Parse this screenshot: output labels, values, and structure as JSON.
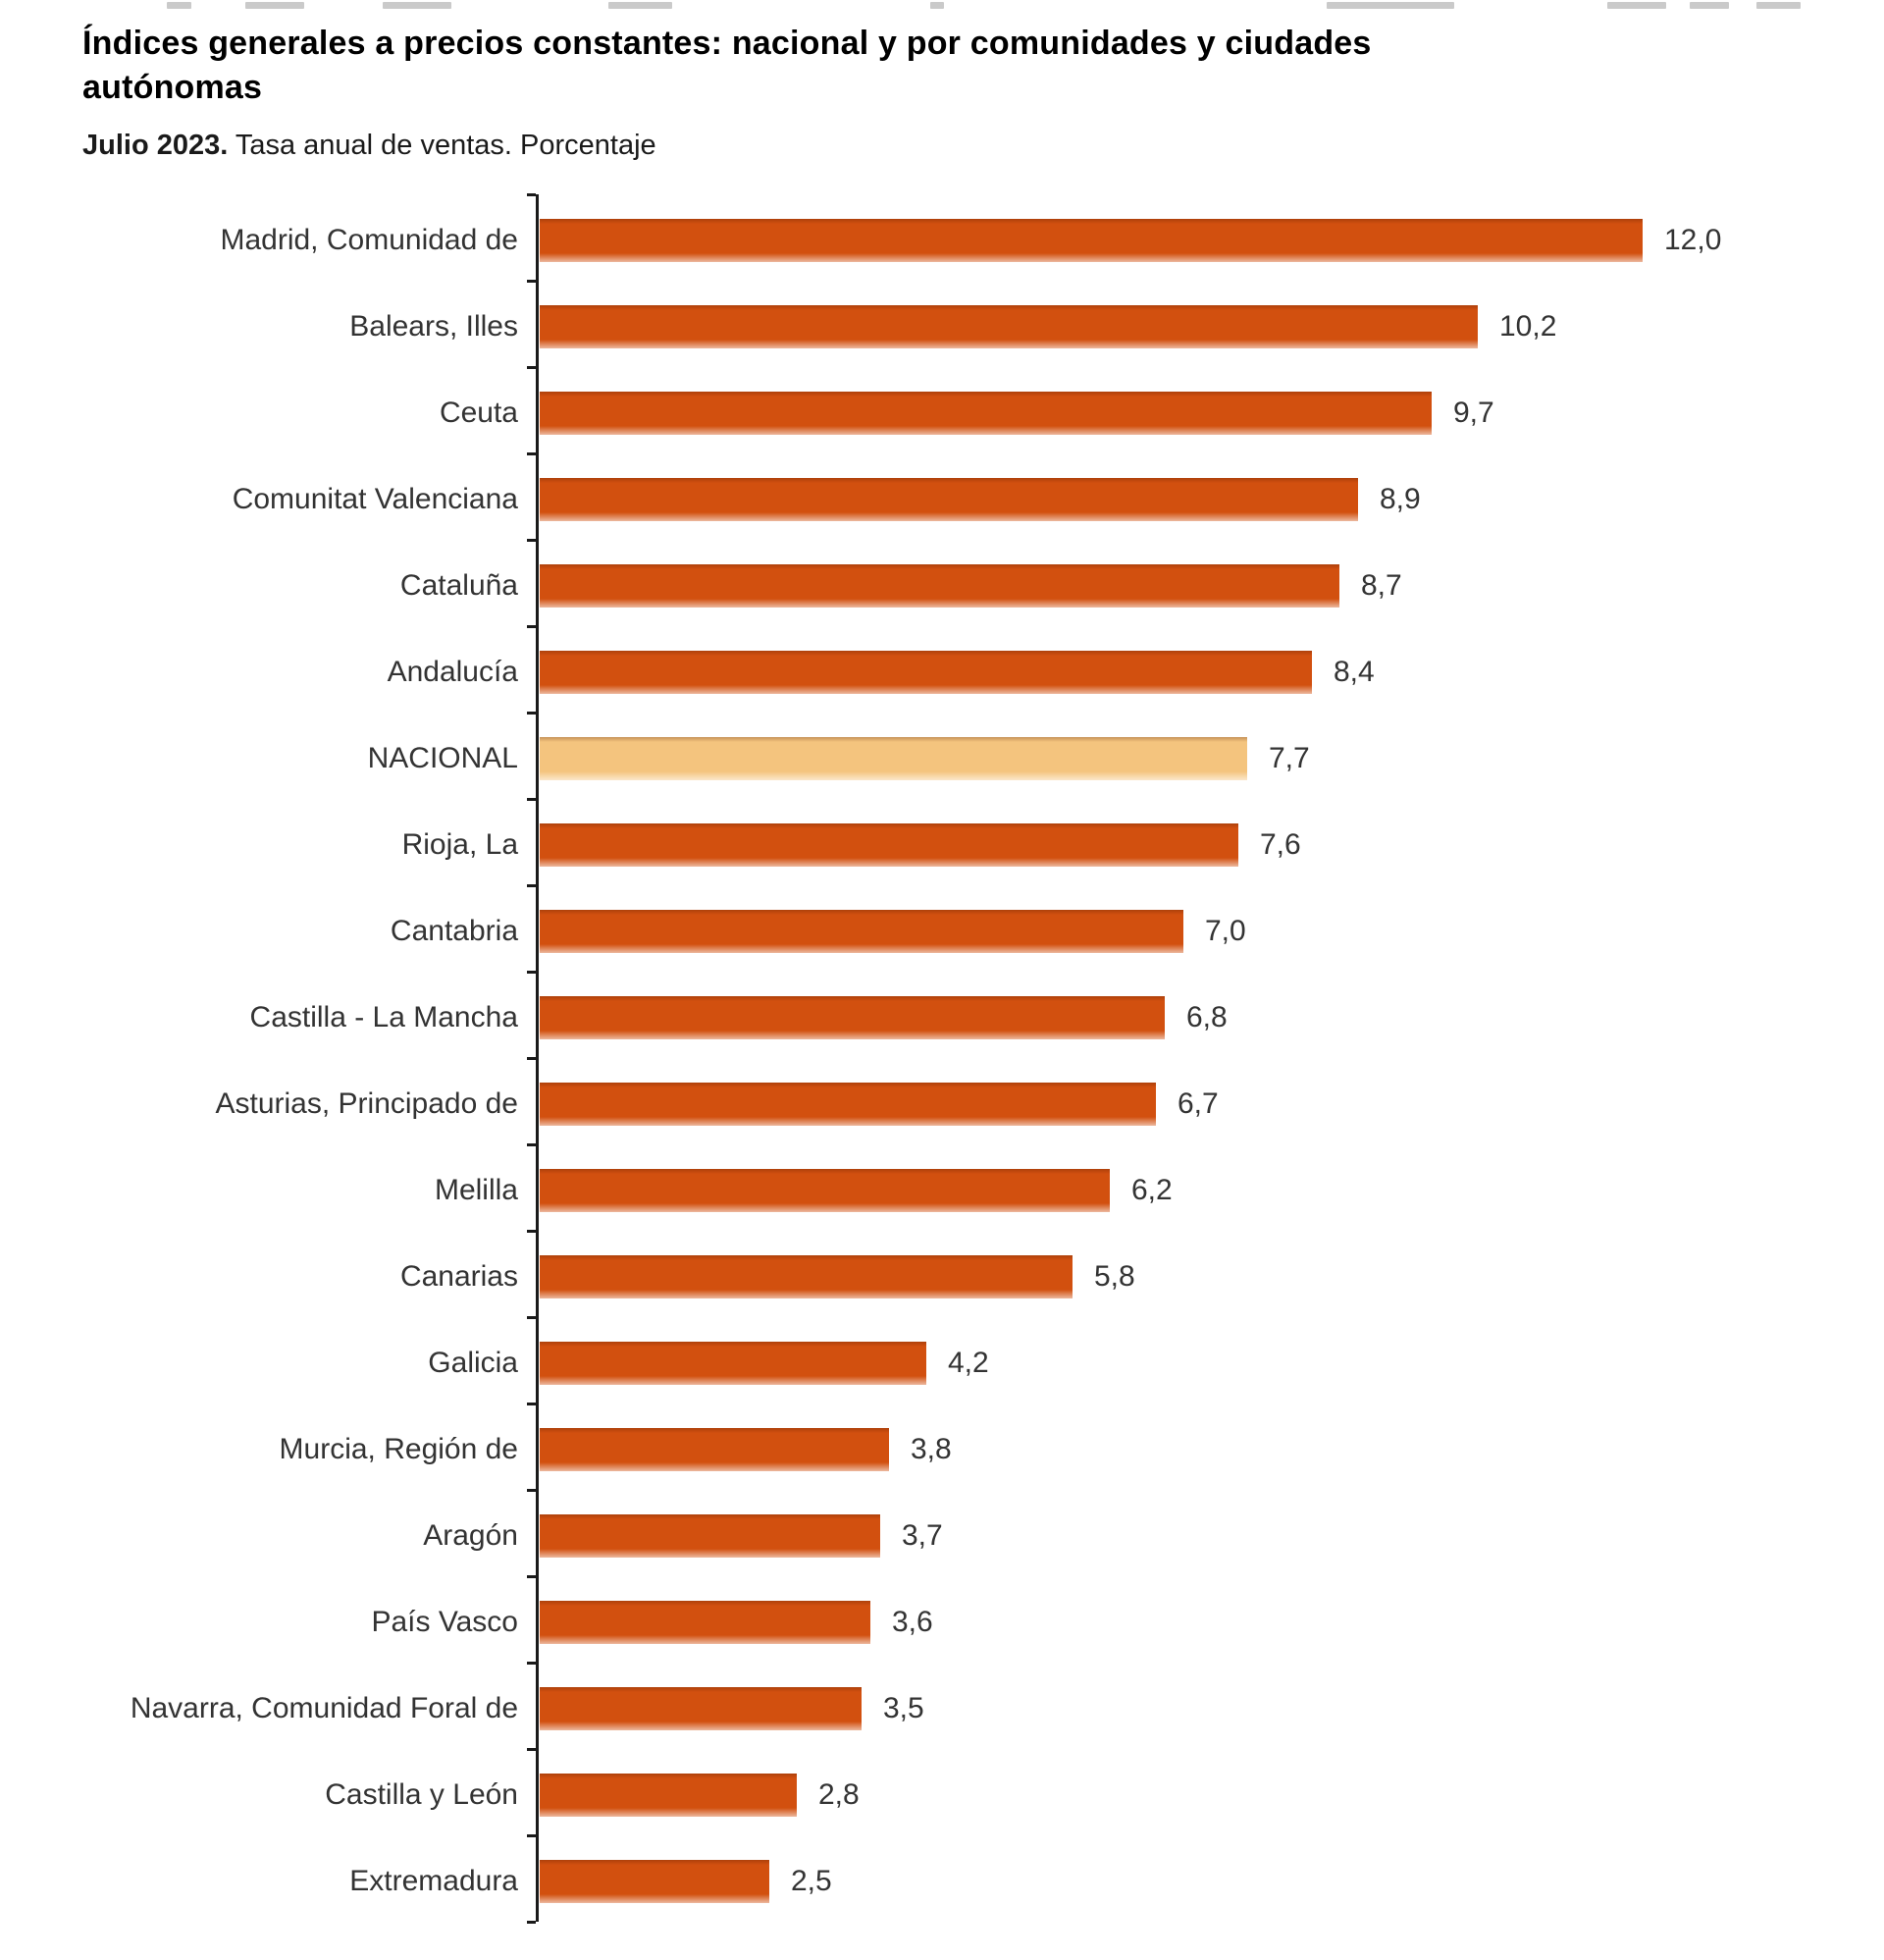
{
  "header": {
    "title": "Índices generales a precios constantes: nacional y por comunidades y ciudades autónomas",
    "subtitle_bold": "Julio 2023.",
    "subtitle_rest": " Tasa anual de ventas. Porcentaje"
  },
  "chart_data": {
    "type": "bar",
    "orientation": "horizontal",
    "title": "Índices generales a precios constantes: nacional y por comunidades y ciudades autónomas",
    "subtitle": "Julio 2023. Tasa anual de ventas. Porcentaje",
    "xlabel": "",
    "ylabel": "",
    "unit": "Porcentaje (tasa anual de ventas)",
    "xlim": [
      0,
      13
    ],
    "grid": false,
    "legend": false,
    "categories": [
      "Madrid, Comunidad de",
      "Balears, Illes",
      "Ceuta",
      "Comunitat Valenciana",
      "Cataluña",
      "Andalucía",
      "NACIONAL",
      "Rioja, La",
      "Cantabria",
      "Castilla - La Mancha",
      "Asturias, Principado de",
      "Melilla",
      "Canarias",
      "Galicia",
      "Murcia, Región de",
      "Aragón",
      "País Vasco",
      "Navarra, Comunidad Foral de",
      "Castilla y León",
      "Extremadura"
    ],
    "values": [
      12.0,
      10.2,
      9.7,
      8.9,
      8.7,
      8.4,
      7.7,
      7.6,
      7.0,
      6.8,
      6.7,
      6.2,
      5.8,
      4.2,
      3.8,
      3.7,
      3.6,
      3.5,
      2.8,
      2.5
    ],
    "value_labels": [
      "12,0",
      "10,2",
      "9,7",
      "8,9",
      "8,7",
      "8,4",
      "7,7",
      "7,6",
      "7,0",
      "6,8",
      "6,7",
      "6,2",
      "5,8",
      "4,2",
      "3,8",
      "3,7",
      "3,6",
      "3,5",
      "2,8",
      "2,5"
    ],
    "highlight_category": "NACIONAL",
    "highlight_index": 6,
    "colors": {
      "bar": "#D2500F",
      "highlight_bar": "#F4C47E",
      "axis": "#1A1A1A",
      "label_text": "#333333",
      "value_text": "#333333",
      "title_text": "#000000"
    }
  }
}
